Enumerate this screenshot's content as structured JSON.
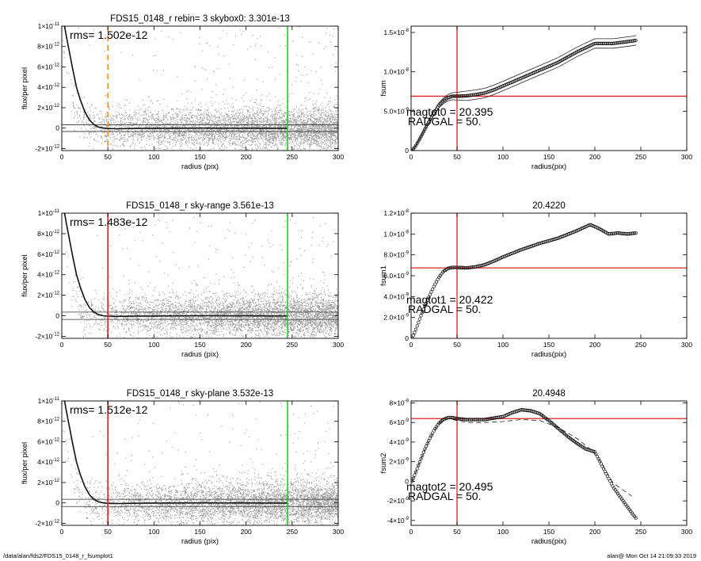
{
  "footer": {
    "left": "/data/alan/fds2/FDS15_0148_r_fsumplot1",
    "right": "alan@  Mon Oct 14 21:09:33 2019"
  },
  "chart_data": [
    {
      "type": "scatter",
      "title": "FDS15_0148_r rebin= 3    skybox0:  3.301e-13",
      "xlabel": "radius (pix)",
      "ylabel": "flux/per pixel",
      "xlim": [
        0,
        300
      ],
      "ylim": [
        -2.2e-12,
        1e-11
      ],
      "xticks": [
        "0",
        "50",
        "100",
        "150",
        "200",
        "250",
        "300"
      ],
      "yticks": [
        {
          "v": 1e-11,
          "m": "1",
          "e": "-11"
        },
        {
          "v": 8e-12,
          "m": "8",
          "e": "-12"
        },
        {
          "v": 6e-12,
          "m": "6",
          "e": "-12"
        },
        {
          "v": 4e-12,
          "m": "4",
          "e": "-12"
        },
        {
          "v": 2e-12,
          "m": "2",
          "e": "-12"
        },
        {
          "v": 0,
          "m": "0",
          "e": ""
        },
        {
          "v": -2e-12,
          "m": "-2",
          "e": "-12"
        }
      ],
      "annotation": "rms= 1.502e-12",
      "radius_line": {
        "x": 50,
        "color": "#ff8c1a",
        "style": "dashed"
      },
      "edge_line": {
        "x": 245,
        "color": "#22cc22"
      },
      "rms_band": [
        3.301e-13,
        -3.301e-13
      ],
      "profile": {
        "x": [
          3,
          5,
          8,
          12,
          16,
          20,
          25,
          30,
          35,
          40,
          45,
          50,
          60,
          80,
          100,
          150,
          200,
          245
        ],
        "y": [
          1e-11,
          9e-12,
          7.6e-12,
          5.7e-12,
          4e-12,
          2.8e-12,
          1.6e-12,
          8e-13,
          3.5e-13,
          1e-13,
          0,
          -4e-14,
          -6e-14,
          -3e-14,
          -2e-14,
          0,
          -1e-14,
          -2e-14
        ]
      }
    },
    {
      "type": "scatter",
      "title": "FDS15_0148_r sky-range  3.561e-13",
      "xlabel": "radius (pix)",
      "ylabel": "flux/per pixel",
      "xlim": [
        0,
        300
      ],
      "ylim": [
        -2.2e-12,
        1e-11
      ],
      "xticks": [
        "0",
        "50",
        "100",
        "150",
        "200",
        "250",
        "300"
      ],
      "yticks": [
        {
          "v": 1e-11,
          "m": "1",
          "e": "-11"
        },
        {
          "v": 8e-12,
          "m": "8",
          "e": "-12"
        },
        {
          "v": 6e-12,
          "m": "6",
          "e": "-12"
        },
        {
          "v": 4e-12,
          "m": "4",
          "e": "-12"
        },
        {
          "v": 2e-12,
          "m": "2",
          "e": "-12"
        },
        {
          "v": 0,
          "m": "0",
          "e": ""
        },
        {
          "v": -2e-12,
          "m": "-2",
          "e": "-12"
        }
      ],
      "annotation": "rms= 1.483e-12",
      "radius_line": {
        "x": 50,
        "color": "#e02020",
        "style": "solid"
      },
      "edge_line": {
        "x": 245,
        "color": "#22cc22"
      },
      "rms_band": [
        3.561e-13,
        -3.561e-13
      ],
      "profile": {
        "x": [
          3,
          5,
          8,
          12,
          16,
          20,
          25,
          30,
          35,
          40,
          45,
          50,
          60,
          80,
          100,
          150,
          200,
          245
        ],
        "y": [
          1e-11,
          9e-12,
          7.6e-12,
          5.7e-12,
          4e-12,
          2.8e-12,
          1.6e-12,
          8e-13,
          3.5e-13,
          1e-13,
          0,
          -4e-14,
          -6e-14,
          -3e-14,
          -2e-14,
          0,
          -1e-14,
          -2e-14
        ]
      }
    },
    {
      "type": "scatter",
      "title": "FDS15_0148_r sky-plane  3.532e-13",
      "xlabel": "radius (pix)",
      "ylabel": "flux/per pixel",
      "xlim": [
        0,
        300
      ],
      "ylim": [
        -2.2e-12,
        1e-11
      ],
      "xticks": [
        "0",
        "50",
        "100",
        "150",
        "200",
        "250",
        "300"
      ],
      "yticks": [
        {
          "v": 1e-11,
          "m": "1",
          "e": "-11"
        },
        {
          "v": 8e-12,
          "m": "8",
          "e": "-12"
        },
        {
          "v": 6e-12,
          "m": "6",
          "e": "-12"
        },
        {
          "v": 4e-12,
          "m": "4",
          "e": "-12"
        },
        {
          "v": 2e-12,
          "m": "2",
          "e": "-12"
        },
        {
          "v": 0,
          "m": "0",
          "e": ""
        },
        {
          "v": -2e-12,
          "m": "-2",
          "e": "-12"
        }
      ],
      "annotation": "rms= 1.512e-12",
      "radius_line": {
        "x": 50,
        "color": "#e02020",
        "style": "solid"
      },
      "edge_line": {
        "x": 245,
        "color": "#22cc22"
      },
      "rms_band": [
        3.532e-13,
        -3.532e-13
      ],
      "profile": {
        "x": [
          3,
          5,
          8,
          12,
          16,
          20,
          25,
          30,
          35,
          40,
          45,
          50,
          60,
          80,
          100,
          150,
          200,
          245
        ],
        "y": [
          1e-11,
          9e-12,
          7.6e-12,
          5.7e-12,
          4e-12,
          2.8e-12,
          1.6e-12,
          8e-13,
          3.5e-13,
          1e-13,
          0,
          -4e-14,
          -6e-14,
          -3e-14,
          -2e-14,
          0,
          -1e-14,
          -2e-14
        ]
      }
    },
    {
      "type": "line",
      "title": "",
      "xlabel": "radius(pix)",
      "ylabel": "fsum",
      "xlim": [
        0,
        300
      ],
      "ylim": [
        0,
        1.58e-08
      ],
      "xticks": [
        "0",
        "50",
        "100",
        "150",
        "200",
        "250",
        "300"
      ],
      "yticks": [
        {
          "v": 1.5e-08,
          "m": "1.5",
          "e": "-8"
        },
        {
          "v": 1e-08,
          "m": "1.0",
          "e": "-8"
        },
        {
          "v": 5e-09,
          "m": "5.0",
          "e": "-9"
        },
        {
          "v": 0,
          "m": "0",
          "e": ""
        }
      ],
      "annotation": [
        "magtot0 =  20.395",
        "RADGAL =     50."
      ],
      "vline": {
        "x": 50,
        "color": "#e02020"
      },
      "hline": {
        "y": 6.9e-09,
        "color": "#e02020"
      },
      "curve": {
        "x": [
          1,
          5,
          10,
          15,
          20,
          25,
          30,
          35,
          40,
          45,
          50,
          60,
          70,
          80,
          90,
          100,
          120,
          140,
          160,
          180,
          200,
          220,
          240,
          245
        ],
        "y": [
          0,
          6e-10,
          1.6e-09,
          2.7e-09,
          3.8e-09,
          4.8e-09,
          5.7e-09,
          6.3e-09,
          6.7e-09,
          6.9e-09,
          6.9e-09,
          6.95e-09,
          7.1e-09,
          7.3e-09,
          7.7e-09,
          8.2e-09,
          9.2e-09,
          1.02e-08,
          1.12e-08,
          1.25e-08,
          1.36e-08,
          1.36e-08,
          1.39e-08,
          1.4e-08
        ]
      },
      "upper_offset": 6e-10,
      "lower_offset": -6e-10
    },
    {
      "type": "line",
      "title": "20.4220",
      "xlabel": "radius(pix)",
      "ylabel": "fsum1",
      "xlim": [
        0,
        300
      ],
      "ylim": [
        0,
        1.2e-08
      ],
      "xticks": [
        "0",
        "50",
        "100",
        "150",
        "200",
        "250",
        "300"
      ],
      "yticks": [
        {
          "v": 1.2e-08,
          "m": "1.2",
          "e": "-8"
        },
        {
          "v": 1e-08,
          "m": "1.0",
          "e": "-8"
        },
        {
          "v": 8e-09,
          "m": "8.0",
          "e": "-9"
        },
        {
          "v": 6e-09,
          "m": "6.0",
          "e": "-9"
        },
        {
          "v": 4e-09,
          "m": "4.0",
          "e": "-9"
        },
        {
          "v": 2e-09,
          "m": "2.0",
          "e": "-9"
        },
        {
          "v": 0,
          "m": "0",
          "e": ""
        }
      ],
      "annotation": [
        "magtot1 =  20.422",
        "RADGAL =     50."
      ],
      "vline": {
        "x": 50,
        "color": "#e02020"
      },
      "hline": {
        "y": 6.75e-09,
        "color": "#e02020"
      },
      "curve": {
        "x": [
          1,
          5,
          10,
          15,
          20,
          25,
          30,
          35,
          40,
          45,
          50,
          60,
          70,
          80,
          90,
          100,
          120,
          140,
          160,
          180,
          195,
          205,
          215,
          225,
          235,
          245
        ],
        "y": [
          0,
          8e-10,
          2e-09,
          3.1e-09,
          4.1e-09,
          5e-09,
          5.8e-09,
          6.4e-09,
          6.7e-09,
          6.8e-09,
          6.8e-09,
          6.75e-09,
          6.85e-09,
          7.05e-09,
          7.4e-09,
          7.8e-09,
          8.5e-09,
          9.1e-09,
          9.6e-09,
          1.03e-08,
          1.09e-08,
          1.05e-08,
          1e-08,
          1.01e-08,
          1e-08,
          1.01e-08
        ]
      }
    },
    {
      "type": "line",
      "title": "20.4948",
      "xlabel": "radius(pix)",
      "ylabel": "fsum2",
      "xlim": [
        0,
        300
      ],
      "ylim": [
        -4.5e-09,
        8.2e-09
      ],
      "xticks": [
        "0",
        "50",
        "100",
        "150",
        "200",
        "250",
        "300"
      ],
      "yticks": [
        {
          "v": 8e-09,
          "m": "8",
          "e": "-9"
        },
        {
          "v": 6e-09,
          "m": "6",
          "e": "-9"
        },
        {
          "v": 4e-09,
          "m": "4",
          "e": "-9"
        },
        {
          "v": 2e-09,
          "m": "2",
          "e": "-9"
        },
        {
          "v": 0,
          "m": "0",
          "e": ""
        },
        {
          "v": -2e-09,
          "m": "-2",
          "e": "-9"
        },
        {
          "v": -4e-09,
          "m": "-4",
          "e": "-9"
        }
      ],
      "annotation": [
        "magtot2 =  20.495",
        "RADGAL =     50."
      ],
      "vline": {
        "x": 50,
        "color": "#e02020"
      },
      "hline": {
        "y": 6.4e-09,
        "color": "#e02020"
      },
      "curve": {
        "x": [
          1,
          5,
          10,
          15,
          20,
          25,
          30,
          35,
          40,
          45,
          50,
          60,
          80,
          100,
          110,
          120,
          130,
          140,
          150,
          160,
          170,
          180,
          190,
          200,
          210,
          220,
          230,
          240,
          245
        ],
        "y": [
          0,
          9e-10,
          2.1e-09,
          3.3e-09,
          4.3e-09,
          5.2e-09,
          5.9e-09,
          6.3e-09,
          6.5e-09,
          6.5e-09,
          6.4e-09,
          6.3e-09,
          6.3e-09,
          6.6e-09,
          7e-09,
          7.3e-09,
          7.2e-09,
          6.9e-09,
          6.2e-09,
          5.4e-09,
          4.6e-09,
          3.9e-09,
          3.3e-09,
          3e-09,
          1.2e-09,
          -6e-10,
          -1.9e-09,
          -3.2e-09,
          -3.8e-09
        ]
      },
      "dashed": {
        "x": [
          1,
          10,
          20,
          30,
          40,
          50,
          60,
          80,
          100,
          120,
          140,
          160,
          180,
          200,
          210,
          220,
          240
        ],
        "y": [
          0,
          2.1e-09,
          4.3e-09,
          5.9e-09,
          6.4e-09,
          6.2e-09,
          6e-09,
          6e-09,
          6.1e-09,
          6.3e-09,
          6.2e-09,
          5.5e-09,
          4.4e-09,
          2.9e-09,
          1.4e-09,
          -2e-10,
          -1.5e-09
        ]
      }
    }
  ]
}
